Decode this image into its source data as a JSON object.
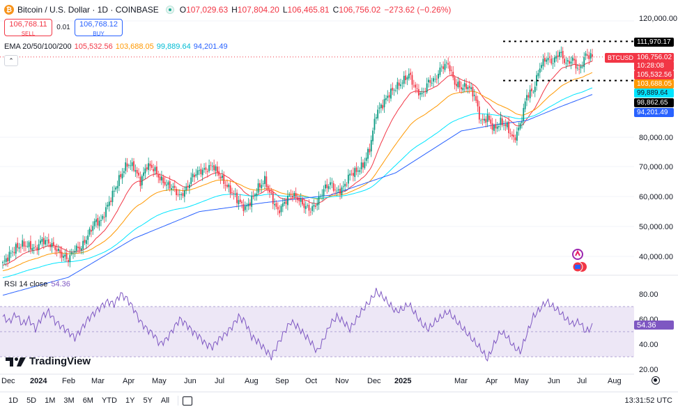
{
  "header": {
    "icon_glyph": "₿",
    "symbol_title": "Bitcoin / U.S. Dollar · 1D · COINBASE",
    "open_label": "O",
    "open_value": "107,029.63",
    "high_label": "H",
    "high_value": "107,804.20",
    "low_label": "L",
    "low_value": "106,465.81",
    "close_label": "C",
    "close_value": "106,756.02",
    "change": "−273.62 (−0.26%)"
  },
  "trade": {
    "sell_price": "106,768.11",
    "sell_label": "SELL",
    "spread": "0.01",
    "buy_price": "106,768.12",
    "buy_label": "BUY"
  },
  "ema": {
    "title": "EMA 20/50/100/200",
    "v20": "105,532.56",
    "v50": "103,688.05",
    "v100": "99,889.64",
    "v200": "94,201.49",
    "collapse_glyph": "⌃"
  },
  "rsi": {
    "title": "RSI 14 close",
    "value": "54.36",
    "axis": [
      "80.00",
      "60.00",
      "40.00",
      "20.00"
    ]
  },
  "price_axis": [
    "120,000.00",
    "80,000.00",
    "70,000.00",
    "60,000.00",
    "50,000.00",
    "40,000.00"
  ],
  "price_tags": {
    "level_top": "111,970.17",
    "ticker": "BTCUSD",
    "last": "106,756.02",
    "countdown": "10:28:08",
    "ema20": "105,532.56",
    "ema50": "103,688.05",
    "ema100": "99,889.64",
    "level_bottom": "98,862.65",
    "ema200": "94,201.49"
  },
  "time_axis": [
    "Dec",
    "2024",
    "Feb",
    "Mar",
    "Apr",
    "May",
    "Jun",
    "Jul",
    "Aug",
    "Sep",
    "Oct",
    "Nov",
    "Dec",
    "2025",
    "Mar",
    "Apr",
    "May",
    "Jun",
    "Jul",
    "Aug"
  ],
  "logo": "TradingView",
  "toolbar": {
    "timeframes": [
      "1D",
      "5D",
      "1M",
      "3M",
      "6M",
      "YTD",
      "1Y",
      "5Y",
      "All"
    ],
    "clock": "13:31:52 UTC"
  },
  "colors": {
    "up": "#089981",
    "down": "#f23645",
    "ema20": "#f23645",
    "ema50": "#ff9800",
    "ema100": "#00e5ff",
    "ema200": "#2962ff",
    "rsi": "#7e57c2",
    "rsi_band": "#ede7f6"
  },
  "chart_data": {
    "type": "candlestick",
    "title": "Bitcoin / U.S. Dollar · 1D · COINBASE",
    "price_range": [
      32000,
      125000
    ],
    "months": [
      "Dec",
      "2024",
      "Feb",
      "Mar",
      "Apr",
      "May",
      "Jun",
      "Jul",
      "Aug",
      "Sep",
      "Oct",
      "Nov",
      "Dec",
      "2025",
      "Mar",
      "Apr",
      "May",
      "Jun",
      "Jul",
      "Aug"
    ],
    "close_path": [
      [
        0,
        37500
      ],
      [
        4,
        40500
      ],
      [
        8,
        42800
      ],
      [
        12,
        44000
      ],
      [
        16,
        43500
      ],
      [
        20,
        42500
      ],
      [
        24,
        45500
      ],
      [
        28,
        44500
      ],
      [
        32,
        42800
      ],
      [
        36,
        40500
      ],
      [
        40,
        39000
      ],
      [
        44,
        42500
      ],
      [
        48,
        43000
      ],
      [
        52,
        47000
      ],
      [
        56,
        51500
      ],
      [
        60,
        51800
      ],
      [
        64,
        57000
      ],
      [
        68,
        62000
      ],
      [
        72,
        67000
      ],
      [
        76,
        71000
      ],
      [
        80,
        70000
      ],
      [
        84,
        65000
      ],
      [
        88,
        70500
      ],
      [
        92,
        69500
      ],
      [
        96,
        66000
      ],
      [
        100,
        64000
      ],
      [
        104,
        63000
      ],
      [
        108,
        60000
      ],
      [
        112,
        62500
      ],
      [
        116,
        67000
      ],
      [
        120,
        68500
      ],
      [
        124,
        69000
      ],
      [
        128,
        70500
      ],
      [
        132,
        67500
      ],
      [
        136,
        64000
      ],
      [
        140,
        61500
      ],
      [
        144,
        58500
      ],
      [
        148,
        56000
      ],
      [
        152,
        59000
      ],
      [
        156,
        63000
      ],
      [
        160,
        65500
      ],
      [
        164,
        60000
      ],
      [
        168,
        55000
      ],
      [
        172,
        58000
      ],
      [
        176,
        61000
      ],
      [
        180,
        59500
      ],
      [
        184,
        57000
      ],
      [
        188,
        55500
      ],
      [
        192,
        58000
      ],
      [
        196,
        62500
      ],
      [
        200,
        64500
      ],
      [
        204,
        61500
      ],
      [
        208,
        63000
      ],
      [
        212,
        67500
      ],
      [
        216,
        68500
      ],
      [
        220,
        70500
      ],
      [
        224,
        76000
      ],
      [
        228,
        88000
      ],
      [
        232,
        91000
      ],
      [
        236,
        94500
      ],
      [
        240,
        96500
      ],
      [
        244,
        98500
      ],
      [
        248,
        101000
      ],
      [
        252,
        96000
      ],
      [
        256,
        94000
      ],
      [
        260,
        98500
      ],
      [
        264,
        99000
      ],
      [
        268,
        103500
      ],
      [
        272,
        104500
      ],
      [
        276,
        98000
      ],
      [
        280,
        96500
      ],
      [
        284,
        97000
      ],
      [
        288,
        94000
      ],
      [
        292,
        85000
      ],
      [
        296,
        86500
      ],
      [
        300,
        82500
      ],
      [
        304,
        85000
      ],
      [
        308,
        83500
      ],
      [
        312,
        79000
      ],
      [
        316,
        84000
      ],
      [
        320,
        94000
      ],
      [
        324,
        95500
      ],
      [
        328,
        103500
      ],
      [
        332,
        106500
      ],
      [
        336,
        105000
      ],
      [
        340,
        108500
      ],
      [
        344,
        104500
      ],
      [
        348,
        106000
      ],
      [
        352,
        102000
      ],
      [
        356,
        107500
      ],
      [
        360,
        106756
      ]
    ],
    "ema200_path": [
      [
        0,
        27000
      ],
      [
        40,
        33000
      ],
      [
        80,
        46000
      ],
      [
        120,
        55000
      ],
      [
        160,
        58000
      ],
      [
        200,
        60500
      ],
      [
        240,
        68000
      ],
      [
        280,
        82000
      ],
      [
        300,
        84000
      ],
      [
        320,
        85500
      ],
      [
        340,
        90000
      ],
      [
        360,
        94201
      ]
    ],
    "last_close": 106756.02,
    "levels": [
      111970.17,
      98862.65
    ],
    "rsi_range": [
      15,
      90
    ],
    "rsi_bands": [
      70,
      50,
      30
    ],
    "rsi_values": [
      62,
      58,
      64,
      56,
      60,
      52,
      62,
      66,
      58,
      54,
      50,
      45,
      52,
      60,
      65,
      70,
      74,
      72,
      80,
      76,
      68,
      58,
      52,
      48,
      40,
      44,
      52,
      60,
      56,
      50,
      46,
      40,
      38,
      44,
      48,
      54,
      62,
      58,
      46,
      42,
      36,
      30,
      40,
      50,
      58,
      54,
      48,
      42,
      34,
      44,
      56,
      62,
      58,
      52,
      60,
      68,
      74,
      82,
      78,
      72,
      66,
      68,
      72,
      64,
      56,
      52,
      58,
      62,
      66,
      60,
      54,
      48,
      42,
      36,
      28,
      40,
      50,
      46,
      38,
      34,
      48,
      62,
      68,
      74,
      70,
      66,
      60,
      56,
      58,
      50,
      54
    ]
  }
}
